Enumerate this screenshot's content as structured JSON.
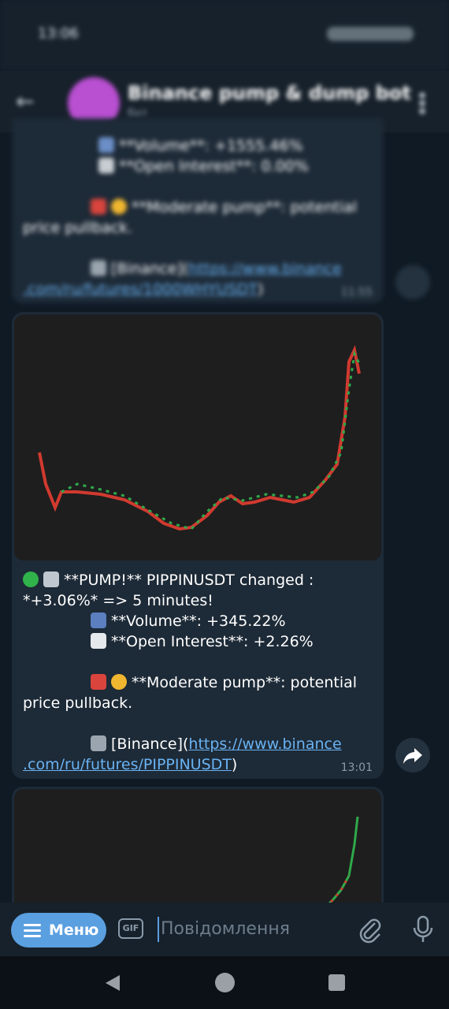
{
  "status": {
    "time": "13:06"
  },
  "header": {
    "title": "Binance pump & dump bot",
    "subtitle": "бот"
  },
  "messages": [
    {
      "lines": [
        "**Volume**: +1555.46%",
        "**Open Interest**: 0.00%",
        "**Moderate pump**: potential",
        "price pullback."
      ],
      "link_prefix": "[Binance](",
      "link_url_1": "https://www.binance",
      "link_url_2": ".com/ru/futures/1000WHYUSDT",
      "link_suffix": ")",
      "time": "11:55"
    },
    {
      "lines": [
        "**PUMP!** PIPPINUSDT changed :",
        "*+3.06%* => 5 minutes!",
        "**Volume**: +345.22%",
        "**Open Interest**: +2.26%",
        "**Moderate pump**: potential",
        "price pullback."
      ],
      "link_prefix": "[Binance](",
      "link_url_1": "https://www.binance",
      "link_url_2": ".com/ru/futures/PIPPINUSDT",
      "link_suffix": ")",
      "time": "13:01"
    }
  ],
  "input": {
    "menu": "Меню",
    "gif": "GIF",
    "placeholder": "Повідомлення"
  }
}
